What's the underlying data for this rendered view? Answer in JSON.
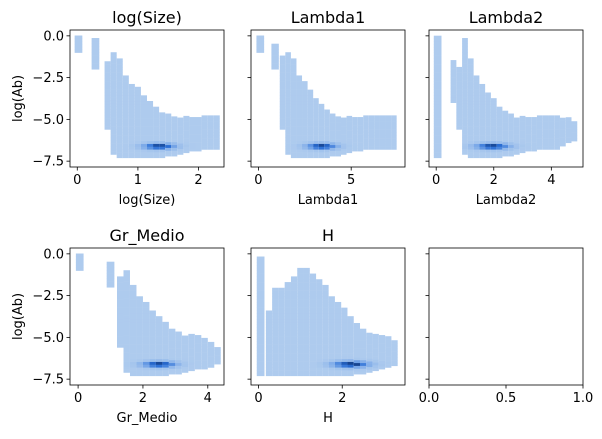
{
  "chart_data": [
    {
      "type": "heatmap",
      "title": "log(Size)",
      "xlabel": "log(Size)",
      "ylabel": "log(Ab)",
      "xlim": [
        -0.12,
        2.42
      ],
      "ylim": [
        -7.85,
        0.35
      ],
      "xticks": [
        0,
        1,
        2
      ],
      "yticks": [
        0.0,
        -2.5,
        -5.0,
        -7.5
      ],
      "xtick_labels": [
        "0",
        "1",
        "2"
      ],
      "ytick_labels": [
        "0.0",
        "−2.5",
        "−5.0",
        "−7.5"
      ],
      "show_ylabel": true,
      "show_yticklabels": true,
      "empty": false,
      "density": {
        "peak": [
          1.35,
          -6.6
        ],
        "peak_spread": [
          0.18,
          0.12
        ],
        "columns": [
          {
            "x": 0.02,
            "ymin": -1.0,
            "ymax": 0.0
          },
          {
            "x": 0.3,
            "ymin": -2.0,
            "ymax": -0.3
          },
          {
            "x": 0.5,
            "ymin": -5.6,
            "ymax": -1.6
          },
          {
            "x": 0.6,
            "ymin": -7.1,
            "ymax": -1.0
          },
          {
            "x": 0.7,
            "ymin": -7.3,
            "ymax": -1.4
          },
          {
            "x": 0.8,
            "ymin": -7.3,
            "ymax": -2.5
          },
          {
            "x": 0.9,
            "ymin": -7.3,
            "ymax": -2.9
          },
          {
            "x": 1.0,
            "ymin": -7.3,
            "ymax": -3.2
          },
          {
            "x": 1.1,
            "ymin": -7.3,
            "ymax": -3.6
          },
          {
            "x": 1.2,
            "ymin": -7.3,
            "ymax": -4.0
          },
          {
            "x": 1.3,
            "ymin": -7.3,
            "ymax": -4.3
          },
          {
            "x": 1.4,
            "ymin": -7.3,
            "ymax": -4.6
          },
          {
            "x": 1.5,
            "ymin": -7.2,
            "ymax": -4.8
          },
          {
            "x": 1.6,
            "ymin": -7.2,
            "ymax": -4.9
          },
          {
            "x": 1.7,
            "ymin": -7.1,
            "ymax": -4.9
          },
          {
            "x": 1.8,
            "ymin": -7.0,
            "ymax": -4.9
          },
          {
            "x": 1.9,
            "ymin": -6.9,
            "ymax": -4.9
          },
          {
            "x": 2.0,
            "ymin": -6.9,
            "ymax": -4.9
          },
          {
            "x": 2.1,
            "ymin": -6.8,
            "ymax": -4.9
          },
          {
            "x": 2.2,
            "ymin": -6.8,
            "ymax": -4.9
          },
          {
            "x": 2.3,
            "ymin": -6.8,
            "ymax": -4.9
          }
        ]
      }
    },
    {
      "type": "heatmap",
      "title": "Lambda1",
      "xlabel": "Lambda1",
      "ylabel": "",
      "xlim": [
        -0.4,
        7.9
      ],
      "ylim": [
        -7.85,
        0.35
      ],
      "xticks": [
        0,
        5
      ],
      "yticks": [
        0.0,
        -2.5,
        -5.0,
        -7.5
      ],
      "xtick_labels": [
        "0",
        "5"
      ],
      "ytick_labels": [
        "",
        "",
        "",
        ""
      ],
      "show_ylabel": false,
      "show_yticklabels": false,
      "empty": false,
      "density": {
        "peak": [
          3.4,
          -6.6
        ],
        "peak_spread": [
          0.55,
          0.12
        ],
        "columns": [
          {
            "x": 0.1,
            "ymin": -1.0,
            "ymax": 0.0
          },
          {
            "x": 0.9,
            "ymin": -2.0,
            "ymax": -0.5
          },
          {
            "x": 1.3,
            "ymin": -5.6,
            "ymax": -1.3
          },
          {
            "x": 1.6,
            "ymin": -7.1,
            "ymax": -1.0
          },
          {
            "x": 1.9,
            "ymin": -7.3,
            "ymax": -1.5
          },
          {
            "x": 2.2,
            "ymin": -7.3,
            "ymax": -2.4
          },
          {
            "x": 2.5,
            "ymin": -7.3,
            "ymax": -2.8
          },
          {
            "x": 2.8,
            "ymin": -7.3,
            "ymax": -3.3
          },
          {
            "x": 3.1,
            "ymin": -7.3,
            "ymax": -3.8
          },
          {
            "x": 3.4,
            "ymin": -7.3,
            "ymax": -4.2
          },
          {
            "x": 3.7,
            "ymin": -7.3,
            "ymax": -4.5
          },
          {
            "x": 4.0,
            "ymin": -7.2,
            "ymax": -4.7
          },
          {
            "x": 4.3,
            "ymin": -7.2,
            "ymax": -4.9
          },
          {
            "x": 4.6,
            "ymin": -7.1,
            "ymax": -4.9
          },
          {
            "x": 4.9,
            "ymin": -7.0,
            "ymax": -4.9
          },
          {
            "x": 5.2,
            "ymin": -6.9,
            "ymax": -4.9
          },
          {
            "x": 5.5,
            "ymin": -6.9,
            "ymax": -4.9
          },
          {
            "x": 5.8,
            "ymin": -6.8,
            "ymax": -4.9
          },
          {
            "x": 6.1,
            "ymin": -6.8,
            "ymax": -4.9
          },
          {
            "x": 6.4,
            "ymin": -6.8,
            "ymax": -4.9
          },
          {
            "x": 6.7,
            "ymin": -6.8,
            "ymax": -4.9
          },
          {
            "x": 7.0,
            "ymin": -6.8,
            "ymax": -4.9
          },
          {
            "x": 7.3,
            "ymin": -6.8,
            "ymax": -4.9
          }
        ]
      }
    },
    {
      "type": "heatmap",
      "title": "Lambda2",
      "xlabel": "Lambda2",
      "ylabel": "",
      "xlim": [
        -0.25,
        5.1
      ],
      "ylim": [
        -7.85,
        0.35
      ],
      "xticks": [
        0,
        2,
        4
      ],
      "yticks": [
        0.0,
        -2.5,
        -5.0,
        -7.5
      ],
      "xtick_labels": [
        "0",
        "2",
        "4"
      ],
      "ytick_labels": [
        "",
        "",
        "",
        ""
      ],
      "show_ylabel": false,
      "show_yticklabels": false,
      "empty": false,
      "density": {
        "peak": [
          1.95,
          -6.6
        ],
        "peak_spread": [
          0.4,
          0.12
        ],
        "columns": [
          {
            "x": 0.05,
            "ymin": -7.3,
            "ymax": 0.0
          },
          {
            "x": 0.6,
            "ymin": -4.0,
            "ymax": -1.5
          },
          {
            "x": 0.8,
            "ymin": -5.6,
            "ymax": -2.0
          },
          {
            "x": 1.0,
            "ymin": -7.1,
            "ymax": -0.3
          },
          {
            "x": 1.2,
            "ymin": -7.3,
            "ymax": -1.5
          },
          {
            "x": 1.4,
            "ymin": -7.3,
            "ymax": -2.5
          },
          {
            "x": 1.6,
            "ymin": -7.3,
            "ymax": -3.0
          },
          {
            "x": 1.8,
            "ymin": -7.3,
            "ymax": -3.4
          },
          {
            "x": 2.0,
            "ymin": -7.3,
            "ymax": -3.9
          },
          {
            "x": 2.2,
            "ymin": -7.3,
            "ymax": -4.3
          },
          {
            "x": 2.4,
            "ymin": -7.2,
            "ymax": -4.6
          },
          {
            "x": 2.6,
            "ymin": -7.2,
            "ymax": -4.8
          },
          {
            "x": 2.8,
            "ymin": -7.1,
            "ymax": -4.9
          },
          {
            "x": 3.0,
            "ymin": -7.0,
            "ymax": -4.9
          },
          {
            "x": 3.2,
            "ymin": -6.9,
            "ymax": -4.9
          },
          {
            "x": 3.4,
            "ymin": -6.9,
            "ymax": -4.9
          },
          {
            "x": 3.6,
            "ymin": -6.8,
            "ymax": -4.9
          },
          {
            "x": 3.8,
            "ymin": -6.8,
            "ymax": -4.9
          },
          {
            "x": 4.0,
            "ymin": -6.8,
            "ymax": -4.9
          },
          {
            "x": 4.2,
            "ymin": -6.8,
            "ymax": -4.9
          },
          {
            "x": 4.4,
            "ymin": -6.6,
            "ymax": -5.0
          },
          {
            "x": 4.6,
            "ymin": -6.4,
            "ymax": -5.0
          },
          {
            "x": 4.8,
            "ymin": -6.3,
            "ymax": -5.2
          }
        ]
      }
    },
    {
      "type": "heatmap",
      "title": "Gr_Medio",
      "xlabel": "Gr_Medio",
      "ylabel": "log(Ab)",
      "xlim": [
        -0.25,
        4.5
      ],
      "ylim": [
        -7.85,
        0.35
      ],
      "xticks": [
        0,
        2,
        4
      ],
      "yticks": [
        0.0,
        -2.5,
        -5.0,
        -7.5
      ],
      "xtick_labels": [
        "0",
        "2",
        "4"
      ],
      "ytick_labels": [
        "0.0",
        "−2.5",
        "−5.0",
        "−7.5"
      ],
      "show_ylabel": true,
      "show_yticklabels": true,
      "empty": false,
      "density": {
        "peak": [
          2.5,
          -6.6
        ],
        "peak_spread": [
          0.35,
          0.12
        ],
        "columns": [
          {
            "x": 0.05,
            "ymin": -1.0,
            "ymax": 0.0
          },
          {
            "x": 1.0,
            "ymin": -2.0,
            "ymax": -0.5
          },
          {
            "x": 1.3,
            "ymin": -5.6,
            "ymax": -1.5
          },
          {
            "x": 1.5,
            "ymin": -7.1,
            "ymax": -1.0
          },
          {
            "x": 1.7,
            "ymin": -7.3,
            "ymax": -2.0
          },
          {
            "x": 1.9,
            "ymin": -7.3,
            "ymax": -2.6
          },
          {
            "x": 2.1,
            "ymin": -7.3,
            "ymax": -3.0
          },
          {
            "x": 2.3,
            "ymin": -7.3,
            "ymax": -3.4
          },
          {
            "x": 2.5,
            "ymin": -7.3,
            "ymax": -3.8
          },
          {
            "x": 2.7,
            "ymin": -7.3,
            "ymax": -4.2
          },
          {
            "x": 2.9,
            "ymin": -7.2,
            "ymax": -4.5
          },
          {
            "x": 3.1,
            "ymin": -7.2,
            "ymax": -4.7
          },
          {
            "x": 3.3,
            "ymin": -7.1,
            "ymax": -4.9
          },
          {
            "x": 3.5,
            "ymin": -7.0,
            "ymax": -4.9
          },
          {
            "x": 3.7,
            "ymin": -6.9,
            "ymax": -5.0
          },
          {
            "x": 3.9,
            "ymin": -6.9,
            "ymax": -5.2
          },
          {
            "x": 4.1,
            "ymin": -6.8,
            "ymax": -5.4
          },
          {
            "x": 4.3,
            "ymin": -6.6,
            "ymax": -5.6
          }
        ]
      }
    },
    {
      "type": "heatmap",
      "title": "H",
      "xlabel": "H",
      "ylabel": "",
      "xlim": [
        -0.18,
        3.5
      ],
      "ylim": [
        -7.85,
        0.35
      ],
      "xticks": [
        0,
        2
      ],
      "yticks": [
        0.0,
        -2.5,
        -5.0,
        -7.5
      ],
      "xtick_labels": [
        "0",
        "2"
      ],
      "ytick_labels": [
        "",
        "",
        "",
        ""
      ],
      "show_ylabel": false,
      "show_yticklabels": false,
      "empty": false,
      "density": {
        "peak": [
          2.2,
          -6.6
        ],
        "peak_spread": [
          0.3,
          0.13
        ],
        "columns": [
          {
            "x": 0.05,
            "ymin": -7.3,
            "ymax": -0.3
          },
          {
            "x": 0.25,
            "ymin": -7.3,
            "ymax": -3.5
          },
          {
            "x": 0.4,
            "ymin": -7.3,
            "ymax": -2.2
          },
          {
            "x": 0.55,
            "ymin": -7.3,
            "ymax": -2.2
          },
          {
            "x": 0.7,
            "ymin": -7.3,
            "ymax": -1.8
          },
          {
            "x": 0.85,
            "ymin": -7.3,
            "ymax": -1.5
          },
          {
            "x": 1.0,
            "ymin": -7.3,
            "ymax": -1.0
          },
          {
            "x": 1.15,
            "ymin": -7.3,
            "ymax": -0.9
          },
          {
            "x": 1.3,
            "ymin": -7.3,
            "ymax": -1.3
          },
          {
            "x": 1.45,
            "ymin": -7.3,
            "ymax": -1.6
          },
          {
            "x": 1.6,
            "ymin": -7.3,
            "ymax": -2.0
          },
          {
            "x": 1.75,
            "ymin": -7.3,
            "ymax": -2.6
          },
          {
            "x": 1.9,
            "ymin": -7.3,
            "ymax": -3.0
          },
          {
            "x": 2.05,
            "ymin": -7.3,
            "ymax": -3.3
          },
          {
            "x": 2.2,
            "ymin": -7.3,
            "ymax": -3.8
          },
          {
            "x": 2.35,
            "ymin": -7.2,
            "ymax": -4.3
          },
          {
            "x": 2.5,
            "ymin": -7.2,
            "ymax": -4.6
          },
          {
            "x": 2.65,
            "ymin": -7.1,
            "ymax": -4.8
          },
          {
            "x": 2.8,
            "ymin": -7.0,
            "ymax": -4.9
          },
          {
            "x": 2.95,
            "ymin": -6.9,
            "ymax": -5.0
          },
          {
            "x": 3.1,
            "ymin": -6.8,
            "ymax": -5.1
          },
          {
            "x": 3.25,
            "ymin": -6.7,
            "ymax": -5.3
          }
        ]
      }
    },
    {
      "type": "heatmap",
      "title": "",
      "xlabel": "",
      "ylabel": "",
      "xlim": [
        0.0,
        1.0
      ],
      "ylim": [
        -7.85,
        0.35
      ],
      "xticks": [
        0.0,
        0.5,
        1.0
      ],
      "yticks": [
        0.0,
        -2.5,
        -5.0,
        -7.5
      ],
      "xtick_labels": [
        "0.0",
        "0.5",
        "1.0"
      ],
      "ytick_labels": [
        "",
        "",
        "",
        ""
      ],
      "show_ylabel": false,
      "show_yticklabels": false,
      "empty": true
    }
  ],
  "colors": {
    "light": "#aecbee",
    "mid": "#7aa8e8",
    "dark": "#2b6fd6",
    "core": "#0a2a66",
    "frame": "#000000",
    "text": "#000000"
  }
}
